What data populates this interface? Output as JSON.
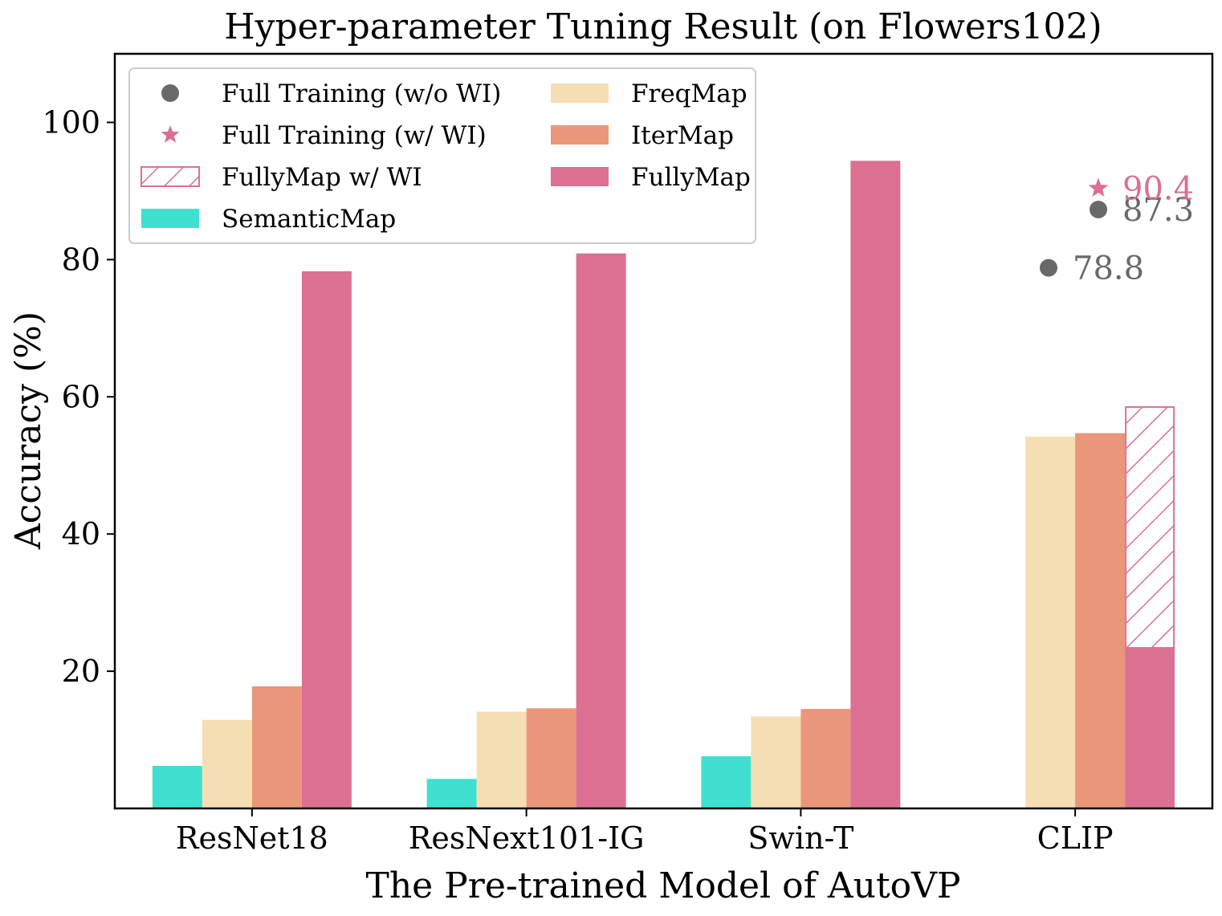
{
  "chart_data": {
    "type": "bar",
    "title": "Hyper-parameter Tuning Result (on Flowers102)",
    "xlabel": "The Pre-trained Model of AutoVP",
    "ylabel": "Accuracy (%)",
    "ylim": [
      0,
      110
    ],
    "yticks": [
      "20",
      "40",
      "60",
      "80",
      "100"
    ],
    "categories": [
      "ResNet18",
      "ResNext101-IG",
      "Swin-T",
      "CLIP"
    ],
    "series": [
      {
        "name": "SemanticMap",
        "color": "#40e0d0",
        "values": [
          6.2,
          4.3,
          7.6,
          null
        ]
      },
      {
        "name": "FreqMap",
        "color": "#f5deb3",
        "values": [
          12.9,
          14.1,
          13.4,
          54.2
        ]
      },
      {
        "name": "IterMap",
        "color": "#e9967a",
        "values": [
          17.8,
          14.6,
          14.5,
          54.7
        ]
      },
      {
        "name": "FullyMap",
        "color": "#db7093",
        "values": [
          78.3,
          80.9,
          94.4,
          23.4
        ]
      }
    ],
    "hatched_series": {
      "name": "FullyMap w/ WI",
      "category": "CLIP",
      "color": "#db7093",
      "value": 58.5
    },
    "points": [
      {
        "label": "Full Training (w/o WI)",
        "marker": "circle",
        "color": "#696969",
        "category": "CLIP",
        "value": 87.3,
        "text": "87.3"
      },
      {
        "label": "Full Training (w/o WI)",
        "marker": "circle",
        "color": "#696969",
        "category": "CLIP",
        "value": 78.8,
        "text": "78.8"
      },
      {
        "label": "Full Training (w/ WI)",
        "marker": "star",
        "color": "#db7093",
        "category": "CLIP",
        "value": 90.4,
        "text": "90.4"
      }
    ],
    "legend": {
      "position": "top-left",
      "items": [
        {
          "label": "Full Training (w/o WI)",
          "kind": "circle",
          "color": "#696969"
        },
        {
          "label": "Full Training (w/ WI)",
          "kind": "star",
          "color": "#db7093"
        },
        {
          "label": "FullyMap w/ WI",
          "kind": "hatch",
          "color": "#db7093"
        },
        {
          "label": "SemanticMap",
          "kind": "patch",
          "color": "#40e0d0"
        },
        {
          "label": "FreqMap",
          "kind": "patch",
          "color": "#f5deb3"
        },
        {
          "label": "IterMap",
          "kind": "patch",
          "color": "#e9967a"
        },
        {
          "label": "FullyMap",
          "kind": "patch",
          "color": "#db7093"
        }
      ]
    }
  }
}
